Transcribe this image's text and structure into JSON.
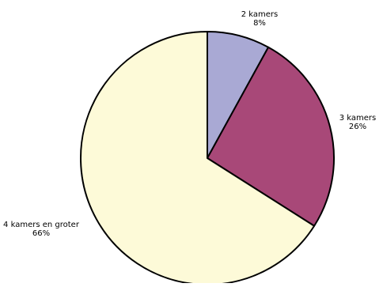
{
  "chart_data": {
    "type": "pie",
    "title": "",
    "series": [
      {
        "label": "2 kamers",
        "value": 8,
        "value_label": "8%",
        "color": "#a9a9d4"
      },
      {
        "label": "3 kamers",
        "value": 26,
        "value_label": "26%",
        "color": "#a84878"
      },
      {
        "label": "4 kamers en groter",
        "value": 66,
        "value_label": "66%",
        "color": "#fdfad8"
      }
    ],
    "start_angle_deg": 0,
    "direction": "clockwise",
    "legend": "none",
    "labels": "outside"
  }
}
